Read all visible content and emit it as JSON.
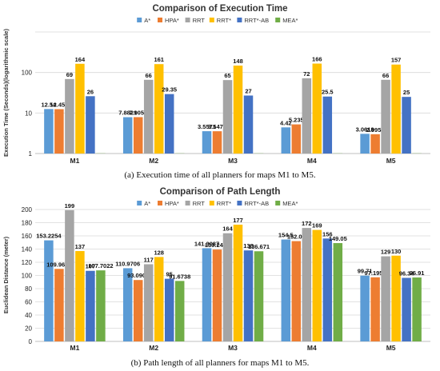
{
  "chart_data": [
    {
      "type": "bar",
      "title": "Comparison of Execution Time",
      "ylabel": "Execution Time (Seconds)(logarithmic scale)",
      "xlabel": "",
      "yscale": "log",
      "ylim": [
        1,
        1000
      ],
      "yticks": [
        "1",
        "10",
        "100"
      ],
      "categories": [
        "M1",
        "M2",
        "M3",
        "M4",
        "M5"
      ],
      "series": [
        {
          "name": "A*",
          "values": [
            12.54,
            7.8821,
            3.5571,
            4.42,
            3.0618
          ],
          "labels": [
            "12.54",
            "7.8821",
            "3.5571",
            "4.42",
            "3.0618"
          ]
        },
        {
          "name": "HPA*",
          "values": [
            12.453,
            7.9059,
            3.5475,
            5.235,
            2.9953
          ],
          "labels": [
            "12.453",
            "7.9059",
            "3.5475",
            "5.235",
            "2.9953"
          ]
        },
        {
          "name": "RRT",
          "values": [
            69,
            66,
            65,
            72,
            66
          ],
          "labels": [
            "69",
            "66",
            "65",
            "72",
            "66"
          ]
        },
        {
          "name": "RRT*",
          "values": [
            164,
            161,
            148,
            166,
            157
          ],
          "labels": [
            "164",
            "161",
            "148",
            "166",
            "157"
          ]
        },
        {
          "name": "RRT*-AB",
          "values": [
            26,
            29.35,
            27,
            25.5,
            25
          ],
          "labels": [
            "26",
            "29.35",
            "27",
            "25.5",
            "25"
          ]
        },
        {
          "name": "MEA*",
          "values": [
            1.01,
            1.01,
            1.01,
            1.01,
            1.01
          ],
          "labels": [
            "",
            "",
            "",
            "",
            ""
          ]
        }
      ],
      "legend": "top",
      "grid": true,
      "caption": "(a) Execution time of all planners for maps M1 to M5."
    },
    {
      "type": "bar",
      "title": "Comparison of Path Length",
      "ylabel": "Euclidean Distance (meter)",
      "xlabel": "",
      "yscale": "linear",
      "ylim": [
        0,
        200
      ],
      "yticks": [
        "0",
        "20",
        "40",
        "60",
        "80",
        "100",
        "120",
        "140",
        "160",
        "180",
        "200"
      ],
      "categories": [
        "M1",
        "M2",
        "M3",
        "M4",
        "M5"
      ],
      "series": [
        {
          "name": "A*",
          "values": [
            153.2254,
            110.9706,
            141.3087,
            154.5,
            99.71
          ],
          "labels": [
            "153.2254",
            "110.9706",
            "141.3087",
            "154.5",
            "99.71"
          ]
        },
        {
          "name": "HPA*",
          "values": [
            109.9675,
            93.0904,
            139.2477,
            152.06,
            97.1958
          ],
          "labels": [
            "109.9675",
            "93.0904",
            "139.2477",
            "152.06",
            "97.1958"
          ]
        },
        {
          "name": "RRT",
          "values": [
            199,
            117,
            164,
            172,
            129
          ],
          "labels": [
            "199",
            "117",
            "164",
            "172",
            "129"
          ]
        },
        {
          "name": "RRT*",
          "values": [
            137,
            128,
            177,
            169,
            130
          ],
          "labels": [
            "137",
            "128",
            "177",
            "169",
            "130"
          ]
        },
        {
          "name": "RRT*-AB",
          "values": [
            107,
            95,
            138,
            156,
            96.34
          ],
          "labels": [
            "107",
            "95",
            "138",
            "156",
            "96.34"
          ]
        },
        {
          "name": "MEA*",
          "values": [
            107.7022,
            91.6738,
            136.671,
            149.05,
            96.91
          ],
          "labels": [
            "107.7022",
            "91.6738",
            "136.671",
            "149.05",
            "96.91"
          ]
        }
      ],
      "legend": "top",
      "grid": true,
      "caption": "(b) Path length of all planners for maps M1 to M5."
    }
  ],
  "colors": [
    "#5b9bd5",
    "#ed7d31",
    "#a5a5a5",
    "#ffc000",
    "#4472c4",
    "#70ad47"
  ]
}
